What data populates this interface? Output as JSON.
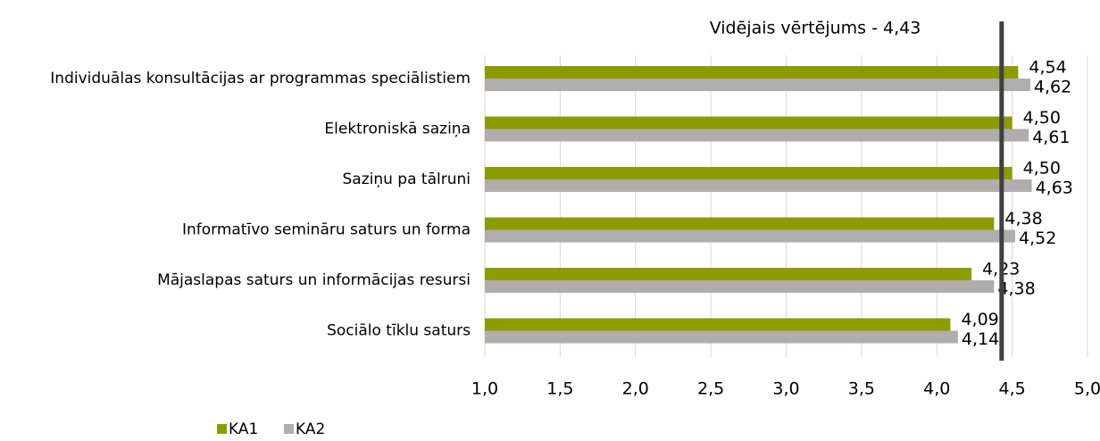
{
  "chart_data": {
    "type": "barh",
    "categories": [
      "Individuālas konsultācijas ar programmas speciālistiem",
      "Elektroniskā saziņa",
      "Saziņu pa tālruni",
      "Informatīvo semināru saturs un forma",
      "Mājaslapas saturs un informācijas resursi",
      "Sociālo tīklu saturs"
    ],
    "series": [
      {
        "name": "KA1",
        "color": "#8c9c00",
        "values": [
          4.54,
          4.5,
          4.5,
          4.38,
          4.23,
          4.09
        ],
        "value_labels": [
          "4,54",
          "4,50",
          "4,50",
          "4,38",
          "4,23",
          "4,09"
        ]
      },
      {
        "name": "KA2",
        "color": "#b2adad",
        "values": [
          4.62,
          4.61,
          4.63,
          4.52,
          4.38,
          4.14
        ],
        "value_labels": [
          "4,62",
          "4,61",
          "4,63",
          "4,52",
          "4,38",
          "4,14"
        ]
      }
    ],
    "reference_line": {
      "value": 4.43,
      "label": "Vidējais vērtējums - 4,43",
      "color": "#404040"
    },
    "xlim": [
      1,
      5
    ],
    "xticks": [
      {
        "value": 1,
        "label": "1,0"
      },
      {
        "value": 1.5,
        "label": "1,5"
      },
      {
        "value": 2,
        "label": "2,0"
      },
      {
        "value": 2.5,
        "label": "2,5"
      },
      {
        "value": 3,
        "label": "3,0"
      },
      {
        "value": 3.5,
        "label": "3,5"
      },
      {
        "value": 4,
        "label": "4,0"
      },
      {
        "value": 4.5,
        "label": "4,5"
      },
      {
        "value": 5,
        "label": "5,0"
      }
    ],
    "grid": true,
    "legend": "bottom-left"
  }
}
